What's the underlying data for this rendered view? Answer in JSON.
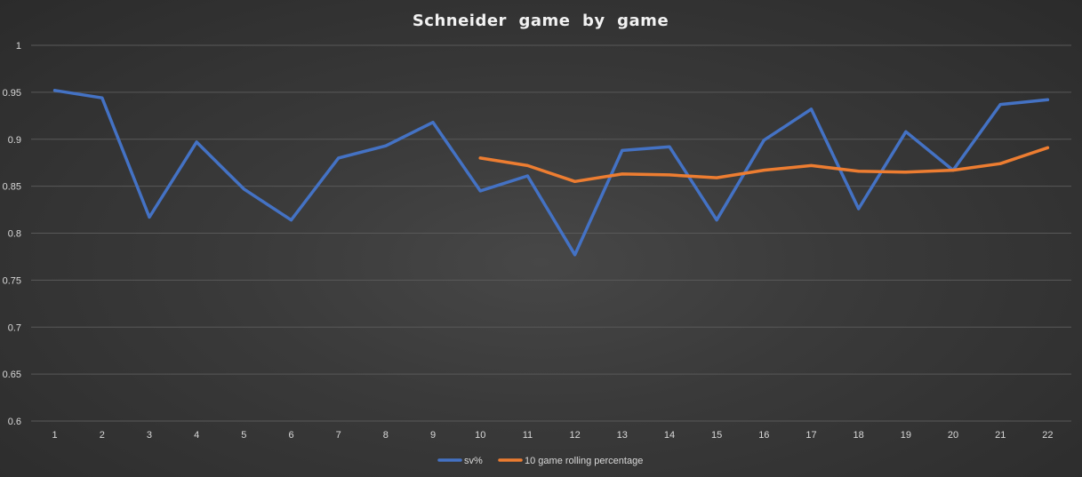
{
  "chart_data": {
    "type": "line",
    "title": "Schneider  game  by  game",
    "xlabel": "",
    "ylabel": "",
    "categories": [
      "1",
      "2",
      "3",
      "4",
      "5",
      "6",
      "7",
      "8",
      "9",
      "10",
      "11",
      "12",
      "13",
      "14",
      "15",
      "16",
      "17",
      "18",
      "19",
      "20",
      "21",
      "22"
    ],
    "y_ticks": [
      "0.6",
      "0.65",
      "0.7",
      "0.75",
      "0.8",
      "0.85",
      "0.9",
      "0.95",
      "1"
    ],
    "ylim": [
      0.6,
      1.0
    ],
    "grid": true,
    "legend_position": "bottom",
    "series": [
      {
        "name": "sv%",
        "color": "#4472c4",
        "values": [
          0.952,
          0.944,
          0.817,
          0.897,
          0.847,
          0.814,
          0.88,
          0.893,
          0.918,
          0.845,
          0.861,
          0.777,
          0.888,
          0.892,
          0.814,
          0.899,
          0.932,
          0.826,
          0.908,
          0.867,
          0.937,
          0.942
        ]
      },
      {
        "name": "10 game rolling percentage",
        "color": "#ed7d31",
        "values": [
          null,
          null,
          null,
          null,
          null,
          null,
          null,
          null,
          null,
          0.88,
          0.872,
          0.855,
          0.863,
          0.862,
          0.859,
          0.867,
          0.872,
          0.866,
          0.865,
          0.867,
          0.874,
          0.891
        ]
      }
    ]
  }
}
